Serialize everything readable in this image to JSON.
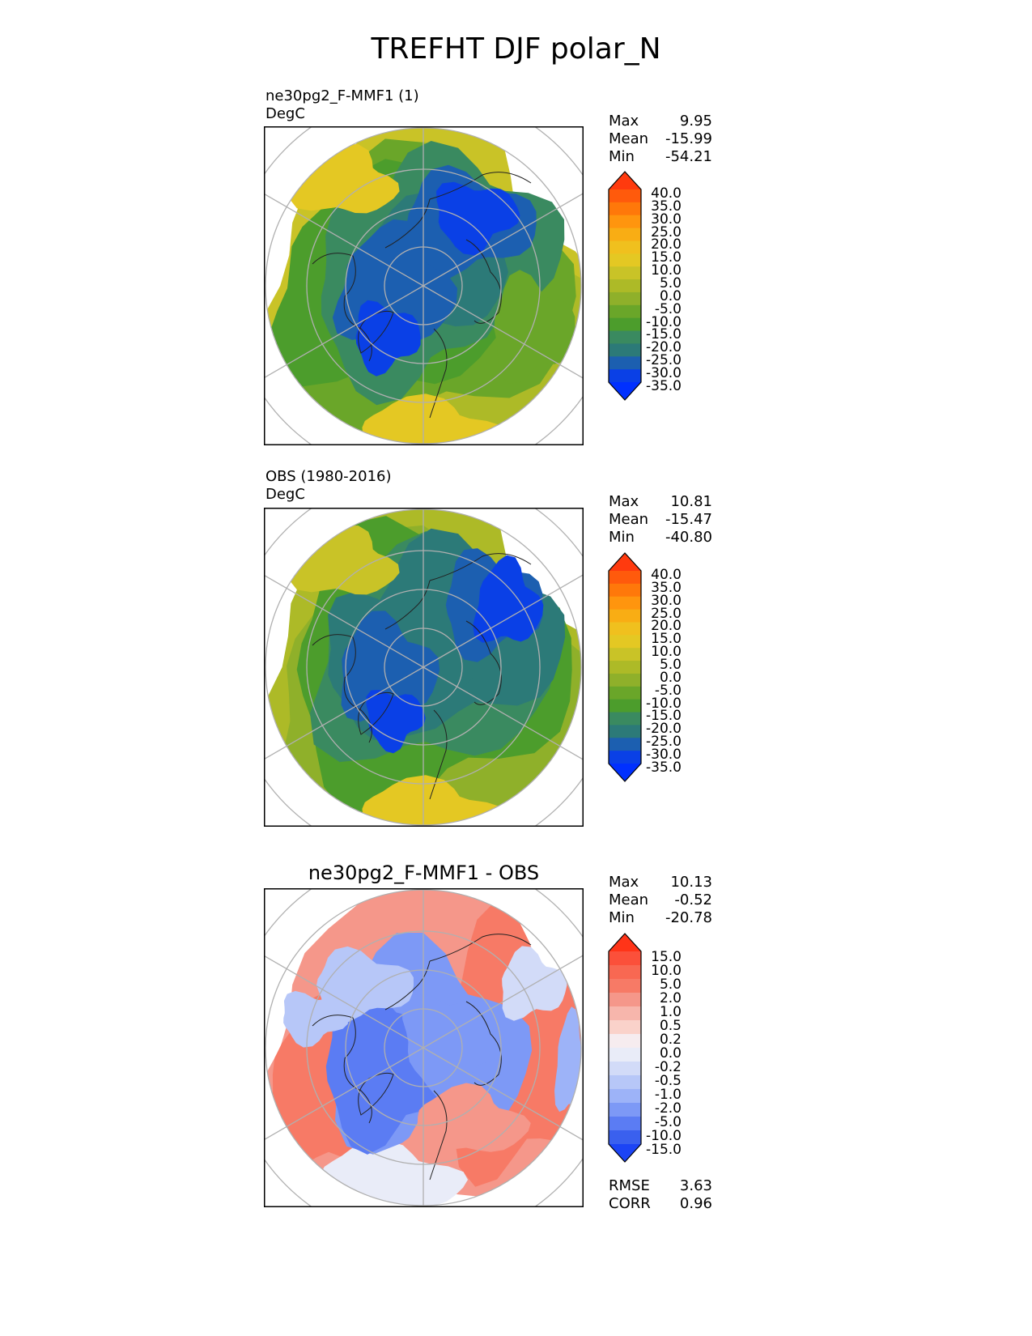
{
  "title": "TREFHT DJF polar_N",
  "panels": [
    {
      "name": "ne30pg2_F-MMF1 (1)",
      "units": "DegC",
      "stats": [
        [
          "Max",
          "9.95"
        ],
        [
          "Mean",
          "-15.99"
        ],
        [
          "Min",
          "-54.21"
        ]
      ],
      "colorbar": "temp"
    },
    {
      "name": "OBS (1980-2016)",
      "units": "DegC",
      "stats": [
        [
          "Max",
          "10.81"
        ],
        [
          "Mean",
          "-15.47"
        ],
        [
          "Min",
          "-40.80"
        ]
      ],
      "colorbar": "temp"
    },
    {
      "title": "ne30pg2_F-MMF1 - OBS",
      "stats": [
        [
          "Max",
          "10.13"
        ],
        [
          "Mean",
          "-0.52"
        ],
        [
          "Min",
          "-20.78"
        ]
      ],
      "colorbar": "diff",
      "metrics": [
        [
          "RMSE",
          "3.63"
        ],
        [
          "CORR",
          "0.96"
        ]
      ]
    }
  ],
  "colorbars": {
    "temp": {
      "labels": [
        "40.0",
        "35.0",
        "30.0",
        "25.0",
        "20.0",
        "15.0",
        "10.0",
        "5.0",
        "0.0",
        "-5.0",
        "-10.0",
        "-15.0",
        "-20.0",
        "-25.0",
        "-30.0",
        "-35.0"
      ],
      "colors": [
        "#ff3a0e",
        "#ff5a0c",
        "#ff780a",
        "#ff950e",
        "#f9ad14",
        "#f0c01e",
        "#e4c823",
        "#c9c327",
        "#adba27",
        "#8fb02a",
        "#6aa629",
        "#4c9d2c",
        "#3a8a60",
        "#2c7a78",
        "#1c5fb0",
        "#0a40e6",
        "#0030ff"
      ]
    },
    "diff": {
      "labels": [
        "15.0",
        "10.0",
        "5.0",
        "2.0",
        "1.0",
        "0.5",
        "0.2",
        "0.0",
        "-0.2",
        "-0.5",
        "-1.0",
        "-2.0",
        "-5.0",
        "-10.0",
        "-15.0"
      ],
      "colors": [
        "#ff3418",
        "#fb503a",
        "#f86852",
        "#f77a66",
        "#f5978a",
        "#f7b6ac",
        "#fad2ca",
        "#f6ecef",
        "#e9ecf8",
        "#d2dbf8",
        "#b7c7f8",
        "#9db3f8",
        "#7d99f6",
        "#5b7cf3",
        "#3a60ee",
        "#1c44f5"
      ]
    }
  }
}
